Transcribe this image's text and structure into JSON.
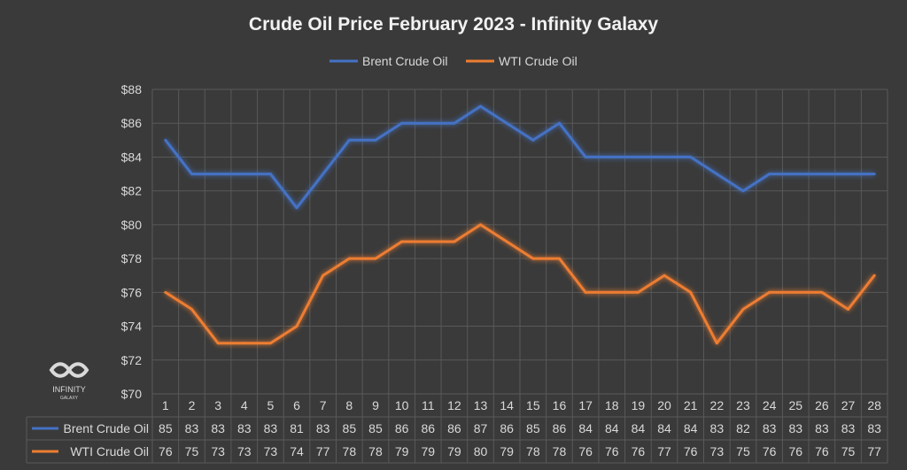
{
  "chart_data": {
    "type": "line",
    "title": "Crude Oil Price February 2023 - Infinity Galaxy",
    "categories": [
      "1",
      "2",
      "3",
      "4",
      "5",
      "6",
      "7",
      "8",
      "9",
      "10",
      "11",
      "12",
      "13",
      "14",
      "15",
      "16",
      "17",
      "18",
      "19",
      "20",
      "21",
      "22",
      "23",
      "24",
      "25",
      "26",
      "27",
      "28"
    ],
    "series": [
      {
        "name": "Brent Crude Oil",
        "color": "#4472c4",
        "values": [
          85,
          83,
          83,
          83,
          83,
          81,
          83,
          85,
          85,
          86,
          86,
          86,
          87,
          86,
          85,
          86,
          84,
          84,
          84,
          84,
          84,
          83,
          82,
          83,
          83,
          83,
          83,
          83
        ]
      },
      {
        "name": "WTI Crude Oil",
        "color": "#ed7d31",
        "values": [
          76,
          75,
          73,
          73,
          73,
          74,
          77,
          78,
          78,
          79,
          79,
          79,
          80,
          79,
          78,
          78,
          76,
          76,
          76,
          77,
          76,
          73,
          75,
          76,
          76,
          76,
          75,
          77
        ]
      }
    ],
    "ylim": [
      70,
      88
    ],
    "y_ticks": [
      "$70",
      "$72",
      "$74",
      "$76",
      "$78",
      "$80",
      "$82",
      "$84",
      "$86",
      "$88"
    ],
    "legend_position": "top-center",
    "grid": true,
    "data_table": true
  },
  "logo": {
    "text": "INFINITY",
    "subtext": "GALAXY"
  }
}
